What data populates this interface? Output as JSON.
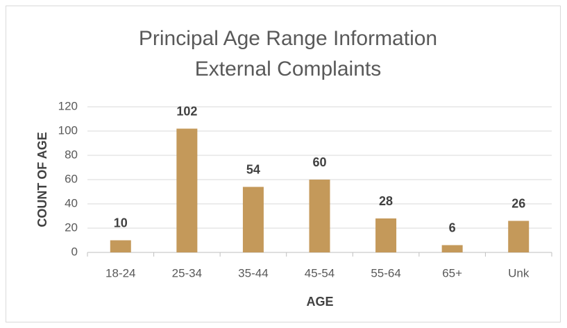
{
  "chart_data": {
    "type": "bar",
    "title": [
      "Principal Age Range Information",
      "External Complaints"
    ],
    "x_label": "AGE",
    "y_label": "COUNT OF AGE",
    "categories": [
      "18-24",
      "25-34",
      "35-44",
      "45-54",
      "55-64",
      "65+",
      "Unk"
    ],
    "values": [
      10,
      102,
      54,
      60,
      28,
      6,
      26
    ],
    "color": "#c4995a",
    "ylim": [
      0,
      120
    ],
    "yticks": [
      0,
      20,
      40,
      60,
      80,
      100,
      120
    ],
    "grid": true
  }
}
